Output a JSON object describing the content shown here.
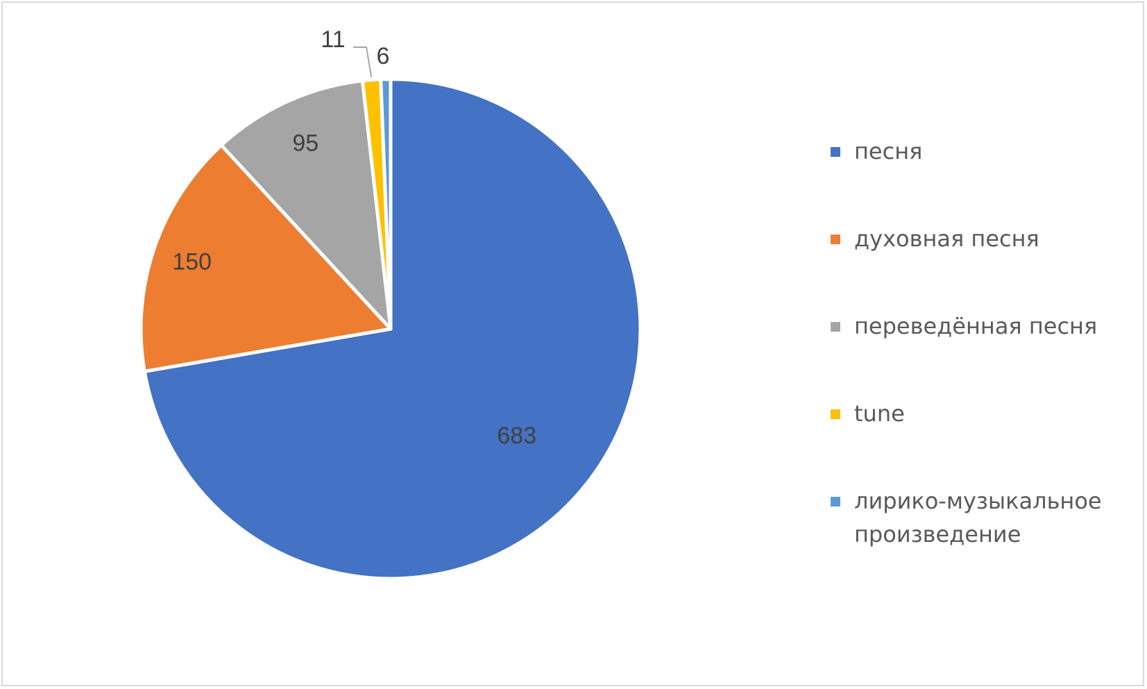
{
  "chart_data": {
    "type": "pie",
    "categories": [
      "песня",
      "духовная песня",
      "переведённая песня",
      "tune",
      "лирико-музыкальное произведение"
    ],
    "values": [
      683,
      150,
      95,
      11,
      6
    ],
    "colors": [
      "#4472C4",
      "#ED7D31",
      "#A5A5A5",
      "#FFC000",
      "#5B9BD5"
    ],
    "data_labels": [
      "683",
      "150",
      "95",
      "11",
      "6"
    ],
    "legend_position": "right",
    "start_angle": "12 o'clock, clockwise"
  },
  "legend": {
    "items": [
      {
        "label": "песня",
        "color": "#4472C4"
      },
      {
        "label": "духовная песня",
        "color": "#ED7D31"
      },
      {
        "label": "переведённая песня",
        "color": "#A5A5A5"
      },
      {
        "label": "tune",
        "color": "#FFC000"
      },
      {
        "label": "лирико-музыкальное произведение",
        "color": "#5B9BD5"
      }
    ]
  }
}
